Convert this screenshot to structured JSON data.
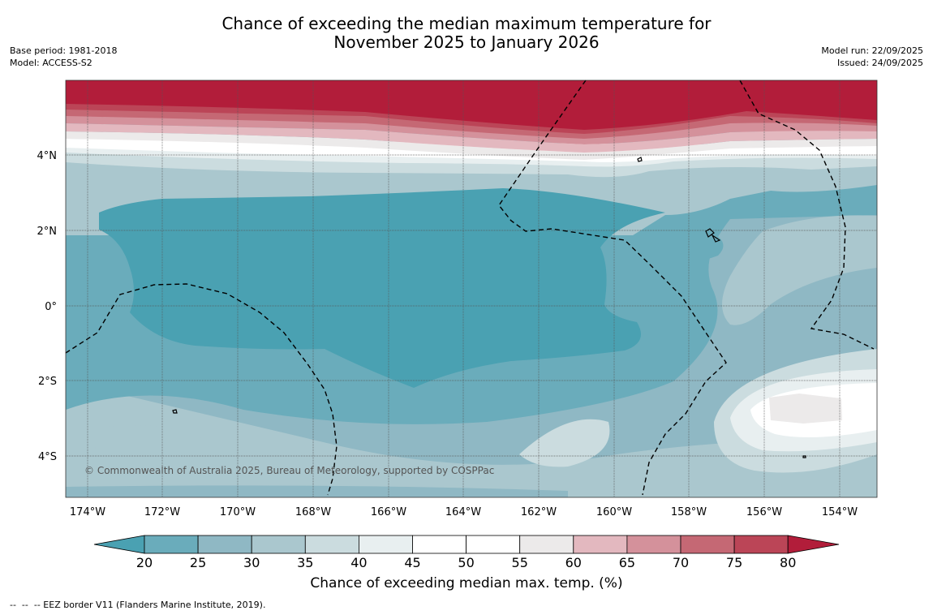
{
  "title": {
    "line1": "Chance of exceeding the median maximum temperature for",
    "line2": "November 2025 to January 2026"
  },
  "meta": {
    "base_period": "Base period: 1981-2018",
    "model": "Model: ACCESS-S2",
    "model_run": "Model run: 22/09/2025",
    "issued": "Issued: 24/09/2025"
  },
  "map": {
    "lat_labels": [
      "4°N",
      "2°N",
      "0°",
      "2°S",
      "4°S"
    ],
    "lon_labels": [
      "174°W",
      "172°W",
      "170°W",
      "168°W",
      "166°W",
      "164°W",
      "162°W",
      "160°W",
      "158°W",
      "156°W",
      "154°W"
    ],
    "copyright": "© Commonwealth of Australia 2025, Bureau of Meteorology, supported by COSPPac"
  },
  "colorbar": {
    "title": "Chance of exceeding median max. temp. (%)",
    "ticks": [
      "20",
      "25",
      "30",
      "35",
      "40",
      "45",
      "50",
      "55",
      "60",
      "65",
      "70",
      "75",
      "80"
    ],
    "colors": [
      "#4aa1b2",
      "#6aacbb",
      "#8fb8c4",
      "#aac7ce",
      "#cbdcdf",
      "#e8eff0",
      "#ffffff",
      "#ffffff",
      "#eceaea",
      "#e3b8bf",
      "#d4919b",
      "#c56874",
      "#bb4557",
      "#b21d3a"
    ]
  },
  "footer": "--  --  -- EEZ border V11 (Flanders Marine Institute, 2019)."
}
